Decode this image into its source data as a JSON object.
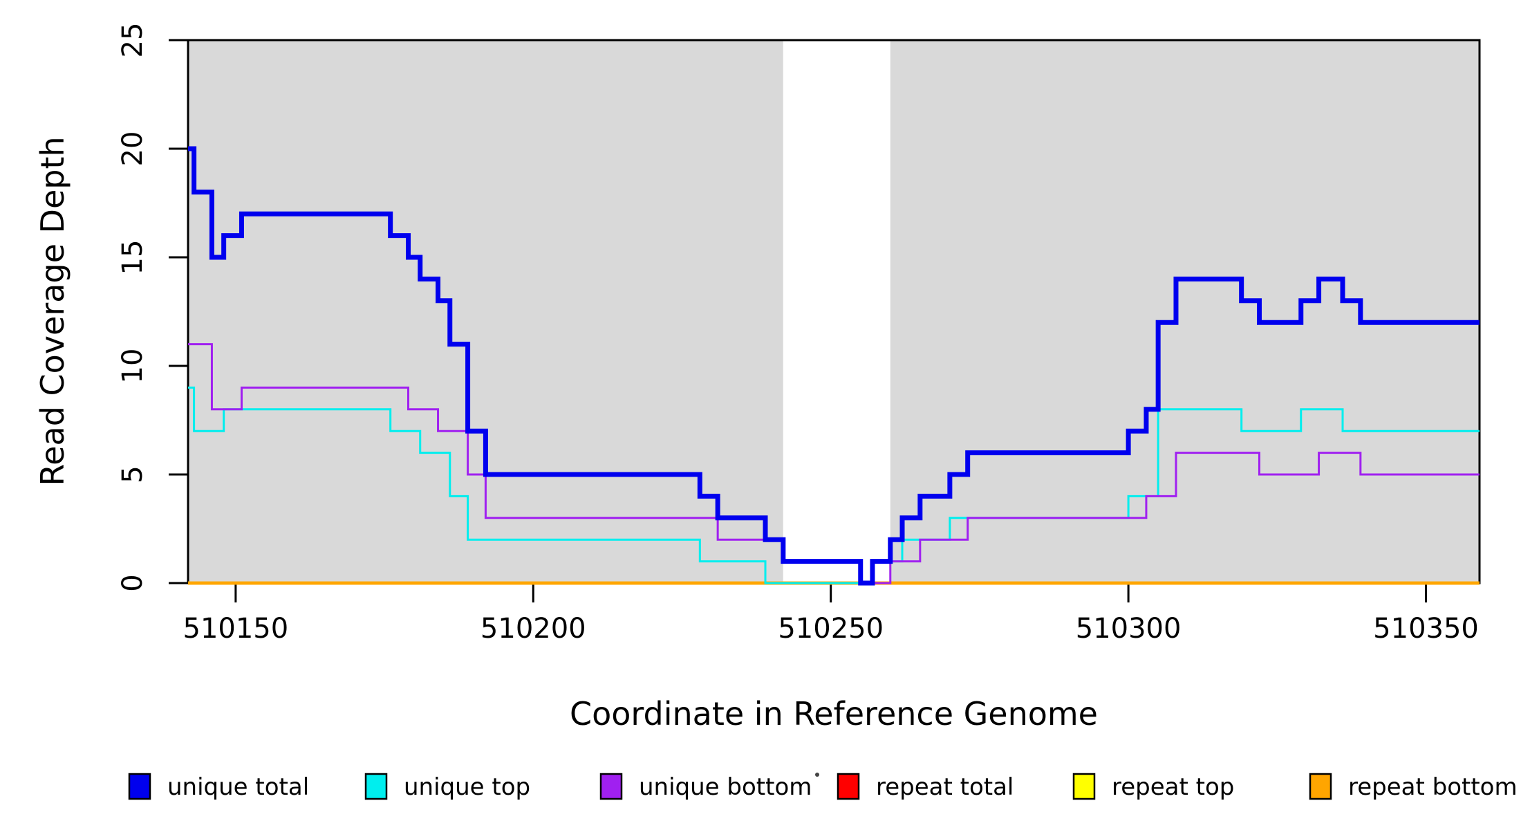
{
  "figure": {
    "x_axis_title": "Coordinate in Reference Genome",
    "y_axis_title": "Read Coverage Depth"
  },
  "chart_data": {
    "type": "line",
    "subtype": "step-post",
    "title": "",
    "xlabel": "Coordinate in Reference Genome",
    "ylabel": "Read Coverage Depth",
    "xlim": [
      510142,
      510359
    ],
    "ylim": [
      0,
      25
    ],
    "xticks": [
      510150,
      510200,
      510250,
      510300,
      510350
    ],
    "yticks": [
      0,
      5,
      10,
      15,
      20,
      25
    ],
    "grid": false,
    "legend_position": "bottom",
    "background_bands": [
      {
        "name": "shaded-left",
        "x0": 510142,
        "x1": 510242,
        "color": "#d9d9d9"
      },
      {
        "name": "gap-white",
        "x0": 510242,
        "x1": 510260,
        "color": "#ffffff"
      },
      {
        "name": "shaded-right",
        "x0": 510260,
        "x1": 510359,
        "color": "#d9d9d9"
      }
    ],
    "series": [
      {
        "name": "repeat total",
        "color": "#ff0000",
        "line_width": 4.5,
        "steps": [
          [
            510142,
            0
          ]
        ]
      },
      {
        "name": "repeat top",
        "color": "#ffff00",
        "line_width": 4.5,
        "steps": [
          [
            510142,
            0
          ]
        ]
      },
      {
        "name": "repeat bottom",
        "color": "#ffa500",
        "line_width": 4.5,
        "steps": [
          [
            510142,
            0
          ]
        ]
      },
      {
        "name": "unique top",
        "color": "#00eeee",
        "line_width": 3,
        "steps": [
          [
            510142,
            9
          ],
          [
            510143,
            7
          ],
          [
            510148,
            8
          ],
          [
            510176,
            7
          ],
          [
            510181,
            6
          ],
          [
            510186,
            4
          ],
          [
            510189,
            2
          ],
          [
            510228,
            1
          ],
          [
            510239,
            0
          ],
          [
            510257,
            1
          ],
          [
            510262,
            2
          ],
          [
            510270,
            3
          ],
          [
            510300,
            4
          ],
          [
            510305,
            8
          ],
          [
            510319,
            7
          ],
          [
            510329,
            8
          ],
          [
            510336,
            7
          ]
        ]
      },
      {
        "name": "unique bottom",
        "color": "#a020f0",
        "line_width": 3,
        "steps": [
          [
            510142,
            11
          ],
          [
            510146,
            8
          ],
          [
            510151,
            9
          ],
          [
            510179,
            8
          ],
          [
            510184,
            7
          ],
          [
            510189,
            5
          ],
          [
            510192,
            3
          ],
          [
            510231,
            2
          ],
          [
            510242,
            1
          ],
          [
            510255,
            0
          ],
          [
            510260,
            1
          ],
          [
            510265,
            2
          ],
          [
            510273,
            3
          ],
          [
            510303,
            4
          ],
          [
            510308,
            6
          ],
          [
            510322,
            5
          ],
          [
            510332,
            6
          ],
          [
            510339,
            5
          ]
        ]
      },
      {
        "name": "unique total",
        "color": "#0000ee",
        "line_width": 7,
        "steps": [
          [
            510142,
            20
          ],
          [
            510143,
            18
          ],
          [
            510146,
            15
          ],
          [
            510148,
            16
          ],
          [
            510151,
            17
          ],
          [
            510176,
            16
          ],
          [
            510179,
            15
          ],
          [
            510181,
            14
          ],
          [
            510184,
            13
          ],
          [
            510186,
            11
          ],
          [
            510189,
            7
          ],
          [
            510192,
            5
          ],
          [
            510228,
            4
          ],
          [
            510231,
            3
          ],
          [
            510239,
            2
          ],
          [
            510242,
            1
          ],
          [
            510255,
            0
          ],
          [
            510257,
            1
          ],
          [
            510260,
            2
          ],
          [
            510262,
            3
          ],
          [
            510265,
            4
          ],
          [
            510270,
            5
          ],
          [
            510273,
            6
          ],
          [
            510300,
            7
          ],
          [
            510303,
            8
          ],
          [
            510305,
            12
          ],
          [
            510308,
            14
          ],
          [
            510319,
            13
          ],
          [
            510322,
            12
          ],
          [
            510329,
            13
          ],
          [
            510332,
            14
          ],
          [
            510336,
            13
          ],
          [
            510339,
            12
          ]
        ]
      }
    ],
    "legend": [
      {
        "label": "unique total",
        "color": "#0000ee"
      },
      {
        "label": "unique top",
        "color": "#00eeee"
      },
      {
        "label": "unique bottom",
        "color": "#a020f0"
      },
      {
        "label": "repeat total",
        "color": "#ff0000"
      },
      {
        "label": "repeat top",
        "color": "#ffff00"
      },
      {
        "label": "repeat bottom",
        "color": "#ffa500"
      }
    ]
  }
}
